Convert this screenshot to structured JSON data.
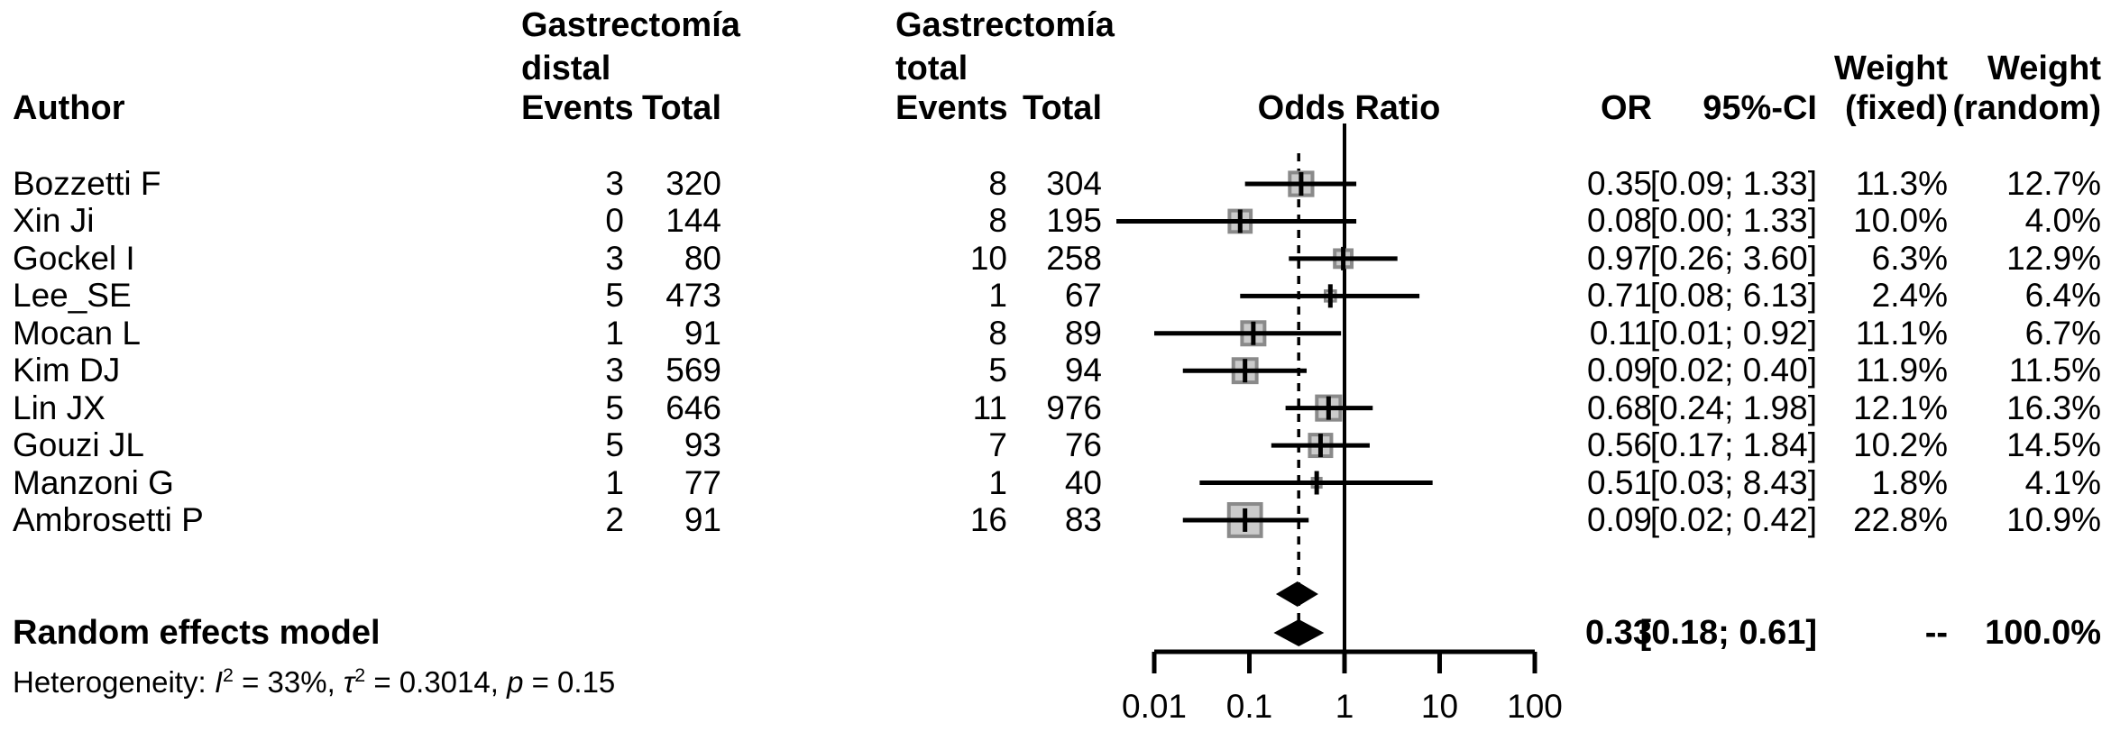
{
  "header": {
    "author": "Author",
    "group1": {
      "title_line1": "Gastrectomía",
      "title_line2": "distal",
      "events": "Events",
      "total": "Total"
    },
    "group2": {
      "title_line1": "Gastrectomía",
      "title_line2": "total",
      "events": "Events",
      "total": "Total"
    },
    "odds_ratio": "Odds Ratio",
    "or": "OR",
    "ci": "95%-CI",
    "weight_fixed_line1": "Weight",
    "weight_fixed_line2": "(fixed)",
    "weight_random_line1": "Weight",
    "weight_random_line2": "(random)"
  },
  "chart_data": {
    "type": "forest",
    "x_scale": "log10",
    "x_range": [
      0.01,
      100
    ],
    "axis_ticks": [
      0.01,
      0.1,
      1,
      10,
      100
    ],
    "axis_tick_labels": [
      "0.01",
      "0.1",
      "1",
      "10",
      "100"
    ],
    "null_line_value": 1,
    "dashed_reference_value": 0.33,
    "studies": [
      {
        "author": "Bozzetti F",
        "g1_events": "3",
        "g1_total": "320",
        "g2_events": "8",
        "g2_total": "304",
        "or": "0.35",
        "ci": "[0.09; 1.33]",
        "lo": 0.09,
        "hi": 1.33,
        "w_fixed": "11.3%",
        "w_random": "12.7%"
      },
      {
        "author": "Xin Ji",
        "g1_events": "0",
        "g1_total": "144",
        "g2_events": "8",
        "g2_total": "195",
        "or": "0.08",
        "ci": "[0.00; 1.33]",
        "lo": 0.0,
        "hi": 1.33,
        "w_fixed": "10.0%",
        "w_random": "4.0%"
      },
      {
        "author": "Gockel I",
        "g1_events": "3",
        "g1_total": "80",
        "g2_events": "10",
        "g2_total": "258",
        "or": "0.97",
        "ci": "[0.26; 3.60]",
        "lo": 0.26,
        "hi": 3.6,
        "w_fixed": "6.3%",
        "w_random": "12.9%"
      },
      {
        "author": "Lee_SE",
        "g1_events": "5",
        "g1_total": "473",
        "g2_events": "1",
        "g2_total": "67",
        "or": "0.71",
        "ci": "[0.08; 6.13]",
        "lo": 0.08,
        "hi": 6.13,
        "w_fixed": "2.4%",
        "w_random": "6.4%"
      },
      {
        "author": "Mocan L",
        "g1_events": "1",
        "g1_total": "91",
        "g2_events": "8",
        "g2_total": "89",
        "or": "0.11",
        "ci": "[0.01; 0.92]",
        "lo": 0.01,
        "hi": 0.92,
        "w_fixed": "11.1%",
        "w_random": "6.7%"
      },
      {
        "author": "Kim DJ",
        "g1_events": "3",
        "g1_total": "569",
        "g2_events": "5",
        "g2_total": "94",
        "or": "0.09",
        "ci": "[0.02; 0.40]",
        "lo": 0.02,
        "hi": 0.4,
        "w_fixed": "11.9%",
        "w_random": "11.5%"
      },
      {
        "author": "Lin JX",
        "g1_events": "5",
        "g1_total": "646",
        "g2_events": "11",
        "g2_total": "976",
        "or": "0.68",
        "ci": "[0.24; 1.98]",
        "lo": 0.24,
        "hi": 1.98,
        "w_fixed": "12.1%",
        "w_random": "16.3%"
      },
      {
        "author": "Gouzi JL",
        "g1_events": "5",
        "g1_total": "93",
        "g2_events": "7",
        "g2_total": "76",
        "or": "0.56",
        "ci": "[0.17; 1.84]",
        "lo": 0.17,
        "hi": 1.84,
        "w_fixed": "10.2%",
        "w_random": "14.5%"
      },
      {
        "author": "Manzoni G",
        "g1_events": "1",
        "g1_total": "77",
        "g2_events": "1",
        "g2_total": "40",
        "or": "0.51",
        "ci": "[0.03; 8.43]",
        "lo": 0.03,
        "hi": 8.43,
        "w_fixed": "1.8%",
        "w_random": "4.1%"
      },
      {
        "author": "Ambrosetti P",
        "g1_events": "2",
        "g1_total": "91",
        "g2_events": "16",
        "g2_total": "83",
        "or": "0.09",
        "ci": "[0.02; 0.42]",
        "lo": 0.02,
        "hi": 0.42,
        "w_fixed": "22.8%",
        "w_random": "10.9%"
      }
    ],
    "fixed_effect_diamond_estimate": {
      "center": 0.32,
      "lo": 0.19,
      "hi": 0.53
    },
    "summary": {
      "label": "Random effects model",
      "or": "0.33",
      "ci": "[0.18; 0.61]",
      "lo": 0.18,
      "hi": 0.61,
      "center": 0.33,
      "w_fixed": "--",
      "w_random": "100.0%"
    },
    "heterogeneity": {
      "prefix": "Heterogeneity: ",
      "i_sym": "I",
      "i_sup": "2",
      "i_rest": " = 33%, ",
      "tau_sym": "τ",
      "tau_sup": "2",
      "tau_rest": " = 0.3014, ",
      "p_sym": "p",
      "p_rest": " = 0.15"
    },
    "colors": {
      "text": "#000000",
      "square_fill": "#cbcbcb",
      "square_border": "#8a8a8a",
      "line": "#000000"
    }
  }
}
